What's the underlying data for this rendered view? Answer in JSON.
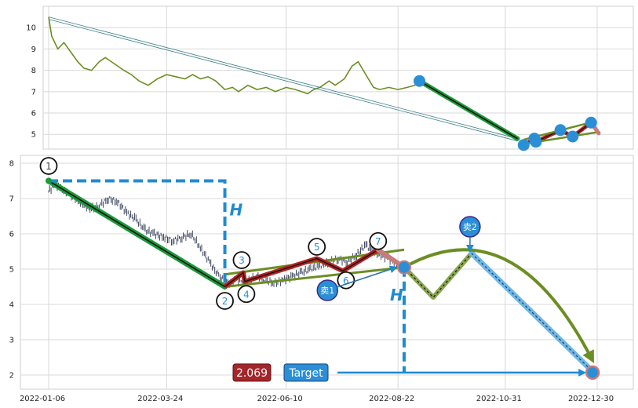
{
  "chart_data": [
    {
      "type": "line",
      "panel": "overview",
      "title": "",
      "xlabel": "",
      "ylabel": "",
      "ylim": [
        4.2,
        11.0
      ],
      "yticks": [
        5,
        6,
        7,
        8,
        9,
        10
      ],
      "grid": true,
      "series": [
        {
          "name": "",
          "color": "#6b8e23",
          "points": [
            [
              "2022-01-06",
              10.5
            ],
            [
              "2022-01-08",
              9.6
            ],
            [
              "2022-01-12",
              9.0
            ],
            [
              "2022-01-16",
              9.3
            ],
            [
              "2022-01-20",
              8.9
            ],
            [
              "2022-01-25",
              8.4
            ],
            [
              "2022-01-29",
              8.1
            ],
            [
              "2022-02-03",
              8.0
            ],
            [
              "2022-02-08",
              8.4
            ],
            [
              "2022-02-12",
              8.6
            ],
            [
              "2022-02-18",
              8.3
            ],
            [
              "2022-02-24",
              8.0
            ],
            [
              "2022-03-01",
              7.8
            ],
            [
              "2022-03-06",
              7.5
            ],
            [
              "2022-03-12",
              7.3
            ],
            [
              "2022-03-18",
              7.6
            ],
            [
              "2022-03-24",
              7.8
            ],
            [
              "2022-03-30",
              7.7
            ],
            [
              "2022-04-05",
              7.6
            ],
            [
              "2022-04-10",
              7.8
            ],
            [
              "2022-04-15",
              7.6
            ],
            [
              "2022-04-20",
              7.7
            ],
            [
              "2022-04-25",
              7.5
            ],
            [
              "2022-05-01",
              7.1
            ],
            [
              "2022-05-06",
              7.2
            ],
            [
              "2022-05-10",
              7.0
            ],
            [
              "2022-05-16",
              7.3
            ],
            [
              "2022-05-22",
              7.1
            ],
            [
              "2022-05-28",
              7.2
            ],
            [
              "2022-06-03",
              7.0
            ],
            [
              "2022-06-10",
              7.2
            ],
            [
              "2022-06-16",
              7.1
            ],
            [
              "2022-06-20",
              7.0
            ],
            [
              "2022-06-24",
              6.9
            ],
            [
              "2022-06-28",
              7.1
            ],
            [
              "2022-07-02",
              7.2
            ],
            [
              "2022-07-08",
              7.5
            ],
            [
              "2022-07-12",
              7.3
            ],
            [
              "2022-07-18",
              7.6
            ],
            [
              "2022-07-23",
              8.2
            ],
            [
              "2022-07-27",
              8.4
            ],
            [
              "2022-08-01",
              7.8
            ],
            [
              "2022-08-06",
              7.2
            ],
            [
              "2022-08-10",
              7.1
            ],
            [
              "2022-08-16",
              7.2
            ],
            [
              "2022-08-22",
              7.1
            ],
            [
              "2022-08-28",
              7.2
            ],
            [
              "2022-09-02",
              7.3
            ],
            [
              "2022-09-05",
              7.5
            ]
          ]
        }
      ],
      "trend_lines": [
        {
          "from": [
            "2022-01-06",
            10.5
          ],
          "to": [
            "2022-11-08",
            4.8
          ],
          "color": "#3d7f88",
          "style": "thin-double"
        },
        {
          "from": [
            "2022-09-05",
            7.5
          ],
          "to": [
            "2022-11-08",
            4.8
          ],
          "color": "#1a9a3a",
          "style": "thick"
        },
        {
          "from": [
            "2022-11-12",
            4.6
          ],
          "to": [
            "2022-12-29",
            5.5
          ],
          "color": "#1f1f1f",
          "style": "zigzag-red"
        }
      ],
      "markers": [
        [
          "2022-09-05",
          7.5
        ],
        [
          "2022-11-12",
          4.5
        ],
        [
          "2022-11-19",
          4.8
        ],
        [
          "2022-11-20",
          4.65
        ],
        [
          "2022-12-06",
          5.2
        ],
        [
          "2022-12-14",
          4.9
        ],
        [
          "2022-12-26",
          5.55
        ]
      ]
    },
    {
      "type": "line",
      "panel": "detail",
      "title": "",
      "xlabel": "",
      "ylabel": "",
      "ylim": [
        1.6,
        8.2
      ],
      "yticks": [
        2,
        3,
        4,
        5,
        6,
        7,
        8
      ],
      "xticks": [
        "2022-01-06",
        "2022-03-24",
        "2022-06-10",
        "2022-08-22",
        "2022-10-31",
        "2022-12-30"
      ],
      "grid": true,
      "price_series": [
        [
          "2022-01-06",
          7.2
        ],
        [
          "2022-01-10",
          7.4
        ],
        [
          "2022-01-14",
          7.3
        ],
        [
          "2022-01-20",
          7.1
        ],
        [
          "2022-01-26",
          6.9
        ],
        [
          "2022-02-02",
          6.7
        ],
        [
          "2022-02-08",
          6.8
        ],
        [
          "2022-02-14",
          7.0
        ],
        [
          "2022-02-20",
          6.9
        ],
        [
          "2022-02-26",
          6.6
        ],
        [
          "2022-03-04",
          6.4
        ],
        [
          "2022-03-10",
          6.1
        ],
        [
          "2022-03-16",
          6.0
        ],
        [
          "2022-03-22",
          5.9
        ],
        [
          "2022-03-28",
          5.8
        ],
        [
          "2022-04-03",
          5.9
        ],
        [
          "2022-04-09",
          6.0
        ],
        [
          "2022-04-15",
          5.6
        ],
        [
          "2022-04-21",
          5.2
        ],
        [
          "2022-04-27",
          4.8
        ],
        [
          "2022-05-03",
          4.6
        ],
        [
          "2022-05-09",
          4.7
        ],
        [
          "2022-05-15",
          4.6
        ],
        [
          "2022-05-21",
          4.8
        ],
        [
          "2022-05-27",
          4.7
        ],
        [
          "2022-06-02",
          4.6
        ],
        [
          "2022-06-08",
          4.7
        ],
        [
          "2022-06-14",
          4.8
        ],
        [
          "2022-06-20",
          4.9
        ],
        [
          "2022-06-26",
          5.0
        ],
        [
          "2022-07-02",
          5.1
        ],
        [
          "2022-07-08",
          5.2
        ],
        [
          "2022-07-14",
          5.3
        ],
        [
          "2022-07-20",
          5.2
        ],
        [
          "2022-07-26",
          5.4
        ],
        [
          "2022-08-01",
          5.7
        ],
        [
          "2022-08-05",
          5.5
        ],
        [
          "2022-08-10",
          5.4
        ],
        [
          "2022-08-16",
          5.3
        ],
        [
          "2022-08-22",
          5.1
        ],
        [
          "2022-08-26",
          5.05
        ]
      ],
      "pattern_points": [
        {
          "label": "1",
          "date": "2022-01-06",
          "value": 7.5
        },
        {
          "label": "2",
          "date": "2022-05-01",
          "value": 4.5
        },
        {
          "label": "3",
          "date": "2022-05-13",
          "value": 4.9
        },
        {
          "label": "4",
          "date": "2022-05-14",
          "value": 4.65
        },
        {
          "label": "5",
          "date": "2022-06-30",
          "value": 5.3
        },
        {
          "label": "6",
          "date": "2022-07-17",
          "value": 4.95
        },
        {
          "label": "7",
          "date": "2022-08-09",
          "value": 5.55
        }
      ],
      "projection": [
        [
          "2022-08-26",
          5.05
        ],
        [
          "2022-09-14",
          4.2
        ],
        [
          "2022-10-09",
          5.45
        ],
        [
          "2022-12-27",
          2.1
        ]
      ],
      "sell_points": [
        {
          "label": "卖1",
          "date": "2022-07-09",
          "value": 4.4
        },
        {
          "label": "卖2",
          "date": "2022-10-09",
          "value": 6.2
        }
      ],
      "height_label": "H",
      "target_label": "Target",
      "target_value": "2.069",
      "target_point": [
        "2022-12-27",
        2.069
      ],
      "colors": {
        "green_trend": "#1a9a3a",
        "olive": "#6b8e23",
        "blue_dash": "#1f8bd0",
        "red_zigzag": "#b22222",
        "marker_blue": "#2a8fd6",
        "badge_red": "#a3262a"
      }
    }
  ]
}
